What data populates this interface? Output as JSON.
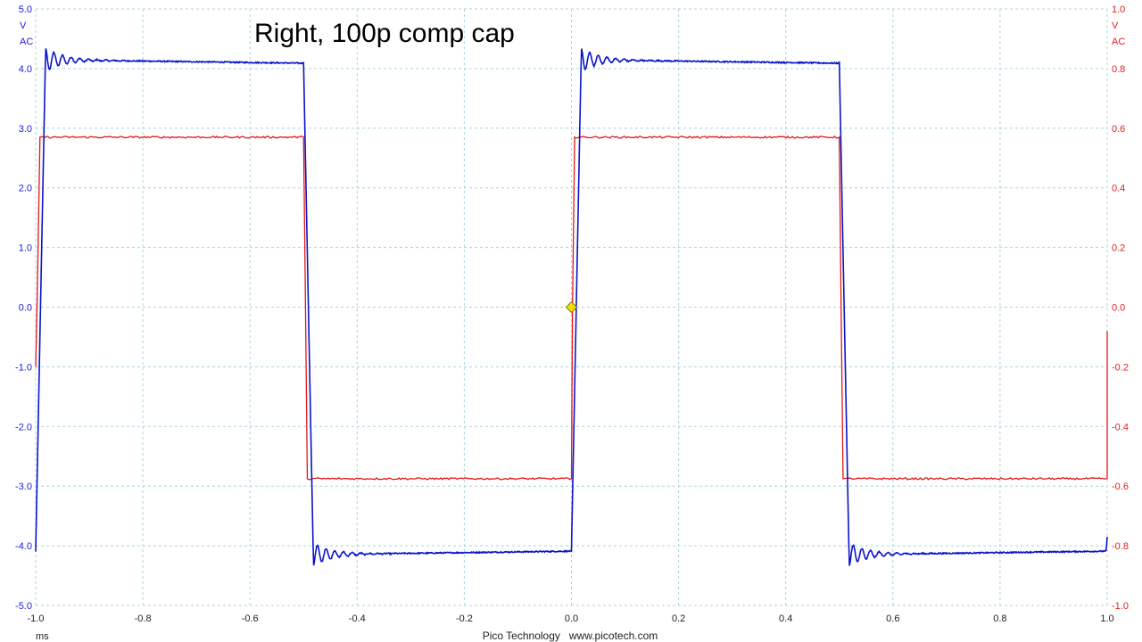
{
  "chart_data": {
    "type": "line",
    "title": "Right, 100p comp cap",
    "footer": "Pico Technology   www.picotech.com",
    "xlabel": "ms",
    "xlim": [
      -1.0,
      1.0
    ],
    "x_ticks": [
      "-1.0",
      "-0.8",
      "-0.6",
      "-0.4",
      "-0.2",
      "0.0",
      "0.2",
      "0.4",
      "0.6",
      "0.8",
      "1.0"
    ],
    "grid": true,
    "axes": {
      "left": {
        "unit": "V",
        "coupling": "AC",
        "color": "#1a1adc",
        "ylim": [
          -5.0,
          5.0
        ],
        "ticks": [
          "5.0",
          "4.0",
          "3.0",
          "2.0",
          "1.0",
          "0.0",
          "-1.0",
          "-2.0",
          "-3.0",
          "-4.0",
          "-5.0"
        ]
      },
      "right": {
        "unit": "V",
        "coupling": "AC",
        "color": "#e02020",
        "ylim": [
          -1.0,
          1.0
        ],
        "ticks": [
          "1.0",
          "0.8",
          "0.6",
          "0.4",
          "0.2",
          "0.0",
          "-0.2",
          "-0.4",
          "-0.6",
          "-0.8",
          "-1.0"
        ]
      }
    },
    "series": [
      {
        "axis": "left",
        "color": "#0a14c8",
        "shape": "square wave with ringing",
        "high": 4.1,
        "low": -4.1,
        "overshoot": 4.2,
        "period_ms": 1.0,
        "rising_edges_ms": [
          -1.0,
          0.0,
          1.0
        ],
        "falling_edges_ms": [
          -0.5,
          0.5
        ]
      },
      {
        "axis": "right",
        "color": "#e01818",
        "shape": "square wave",
        "high": 0.57,
        "low": -0.575,
        "period_ms": 1.0,
        "rising_edges_ms": [
          -1.0,
          0.0
        ],
        "falling_edges_ms": [
          -0.5,
          0.5
        ]
      }
    ],
    "trigger_marker": {
      "x": 0.0,
      "y": 0.0,
      "color": "#f0e000"
    }
  }
}
